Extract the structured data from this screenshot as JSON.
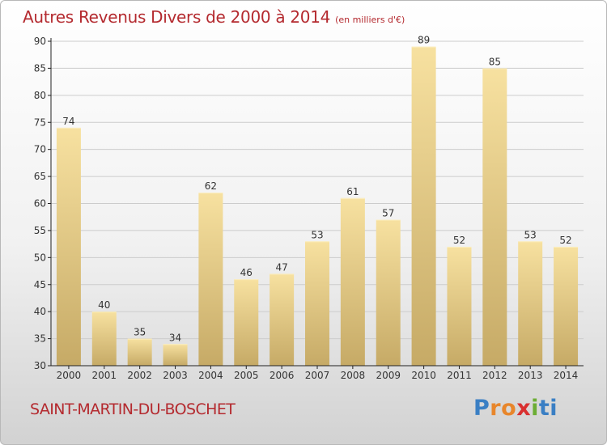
{
  "header": {
    "title": "Autres Revenus Divers de 2000 à 2014",
    "unit": "(en milliers d'€)"
  },
  "footer": {
    "location": "SAINT-MARTIN-DU-BOSCHET",
    "logo": [
      "P",
      "r",
      "o",
      "x",
      "i",
      "ti"
    ]
  },
  "colors": {
    "title": "#b42a2f",
    "bar_light": "#f6df9c",
    "bar_dark": "#c8ad6a",
    "axis": "#222222",
    "grid": "#cccccc"
  },
  "chart_data": {
    "type": "bar",
    "title": "Autres Revenus Divers de 2000 à 2014",
    "unit": "(en milliers d'€)",
    "categories": [
      "2000",
      "2001",
      "2002",
      "2003",
      "2004",
      "2005",
      "2006",
      "2007",
      "2008",
      "2009",
      "2010",
      "2011",
      "2012",
      "2013",
      "2014"
    ],
    "values": [
      74,
      40,
      35,
      34,
      62,
      46,
      47,
      53,
      61,
      57,
      89,
      52,
      85,
      53,
      52
    ],
    "ylim": [
      30,
      90
    ],
    "yticks": [
      30,
      35,
      40,
      45,
      50,
      55,
      60,
      65,
      70,
      75,
      80,
      85,
      90
    ],
    "grid": true,
    "data_labels": true
  }
}
